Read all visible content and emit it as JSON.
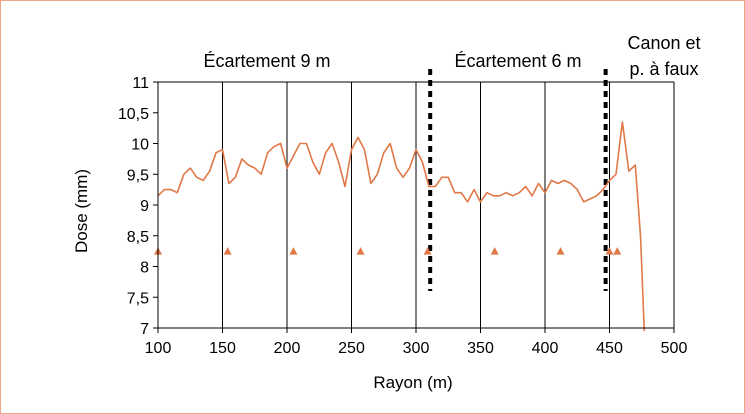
{
  "chart_data": {
    "type": "line",
    "xlabel": "Rayon (m)",
    "ylabel": "Dose (mm)",
    "xlim": [
      100,
      500
    ],
    "ylim": [
      7,
      11
    ],
    "xticks": [
      "100",
      "150",
      "200",
      "250",
      "300",
      "350",
      "400",
      "450",
      "500"
    ],
    "yticks": [
      "7",
      "7,5",
      "8",
      "8,5",
      "9",
      "9,5",
      "10",
      "10,5",
      "11"
    ],
    "grid": "vertical",
    "line_color": "#e07848",
    "series": [
      {
        "x": [
          100,
          105,
          110,
          115,
          120,
          125,
          130,
          135,
          140,
          145,
          150,
          155,
          160,
          165,
          170,
          175,
          180,
          185,
          190,
          195,
          200,
          205,
          210,
          215,
          220,
          225,
          230,
          235,
          240,
          245,
          250,
          255,
          260,
          265,
          270,
          275,
          280,
          285,
          290,
          295,
          300,
          305,
          310,
          315,
          320,
          325,
          330,
          335,
          340,
          345,
          350,
          355,
          360,
          365,
          370,
          375,
          380,
          385,
          390,
          395,
          400,
          405,
          410,
          415,
          420,
          425,
          430,
          435,
          440,
          445,
          450,
          455,
          460,
          465,
          470,
          474,
          477
        ],
        "y": [
          9.15,
          9.25,
          9.25,
          9.2,
          9.5,
          9.6,
          9.45,
          9.4,
          9.55,
          9.85,
          9.9,
          9.35,
          9.45,
          9.75,
          9.65,
          9.6,
          9.5,
          9.85,
          9.95,
          10.0,
          9.6,
          9.8,
          10.0,
          10.0,
          9.7,
          9.5,
          9.85,
          10.0,
          9.7,
          9.3,
          9.9,
          10.1,
          9.9,
          9.35,
          9.5,
          9.85,
          10.0,
          9.6,
          9.45,
          9.6,
          9.9,
          9.7,
          9.3,
          9.3,
          9.45,
          9.45,
          9.2,
          9.2,
          9.05,
          9.25,
          9.05,
          9.2,
          9.15,
          9.15,
          9.2,
          9.15,
          9.2,
          9.3,
          9.15,
          9.35,
          9.2,
          9.4,
          9.35,
          9.4,
          9.35,
          9.25,
          9.05,
          9.1,
          9.15,
          9.25,
          9.4,
          9.5,
          10.35,
          9.55,
          9.65,
          8.5,
          6.95
        ]
      }
    ],
    "markers": {
      "y": 8.25,
      "x": [
        100,
        154,
        205,
        257,
        309,
        361,
        412,
        450,
        456
      ],
      "color": "#e07848"
    },
    "separators": {
      "x": [
        311,
        447
      ],
      "style": "dotted"
    },
    "zones": [
      {
        "label": "Écartement 9 m",
        "x": 205
      },
      {
        "label": "Écartement 6 m",
        "x": 379
      },
      {
        "label_line1": "Canon et",
        "label_line2": "p. à faux",
        "x": 464
      }
    ]
  }
}
